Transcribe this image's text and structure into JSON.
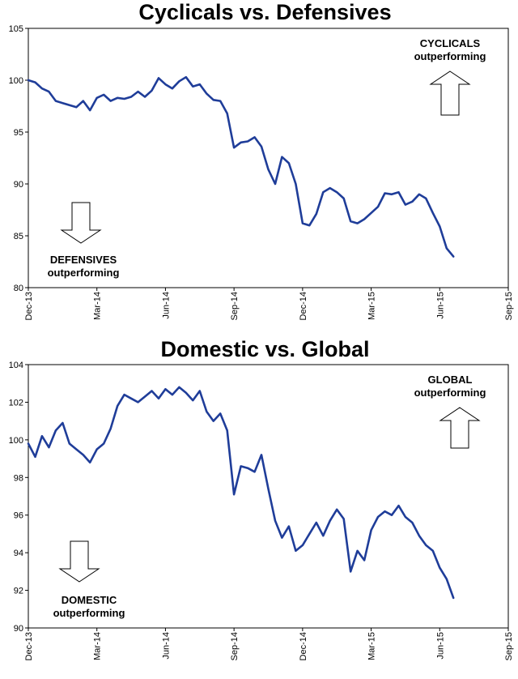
{
  "chart_data": [
    {
      "type": "line",
      "title": "Cyclicals vs. Defensives",
      "ylim": [
        80,
        105
      ],
      "yticks": [
        80,
        85,
        90,
        95,
        100,
        105
      ],
      "xtick_labels": [
        "Dec-13",
        "Mar-14",
        "Jun-14",
        "Sep-14",
        "Dec-14",
        "Mar-15",
        "Jun-15",
        "Sep-15"
      ],
      "xlim": [
        0,
        21
      ],
      "line_color": "#1f3d99",
      "grid": false,
      "annotations": {
        "up": "CYCLICALS\noutperforming",
        "down": "DEFENSIVES\noutperforming"
      },
      "series": [
        {
          "x": [
            0,
            0.3,
            0.6,
            0.9,
            1.2,
            1.5,
            1.8,
            2.1,
            2.4,
            2.7,
            3.0,
            3.3,
            3.6,
            3.9,
            4.2,
            4.5,
            4.8,
            5.1,
            5.4,
            5.7,
            6.0,
            6.3,
            6.6,
            6.9,
            7.2,
            7.5,
            7.8,
            8.1,
            8.4,
            8.7,
            9.0,
            9.3,
            9.6,
            9.9,
            10.2,
            10.5,
            10.8,
            11.1,
            11.4,
            11.7,
            12.0,
            12.3,
            12.6,
            12.9,
            13.2,
            13.5,
            13.8,
            14.1,
            14.4,
            14.7,
            15.0,
            15.3,
            15.6,
            15.9,
            16.2,
            16.5,
            16.8,
            17.1,
            17.4,
            17.7,
            18.0,
            18.3,
            18.6
          ],
          "values": [
            100.0,
            99.8,
            99.2,
            98.9,
            98.0,
            97.8,
            97.6,
            97.4,
            98.0,
            97.1,
            98.3,
            98.6,
            98.0,
            98.3,
            98.2,
            98.4,
            98.9,
            98.4,
            99.0,
            100.2,
            99.6,
            99.2,
            99.9,
            100.3,
            99.4,
            99.6,
            98.7,
            98.1,
            98.0,
            96.8,
            93.5,
            94.0,
            94.1,
            94.5,
            93.6,
            91.4,
            90.0,
            92.6,
            92.0,
            90.0,
            86.2,
            86.0,
            87.1,
            89.2,
            89.6,
            89.2,
            88.6,
            86.4,
            86.2,
            86.6,
            87.2,
            87.8,
            89.1,
            89.0,
            89.2,
            88.0,
            88.3,
            89.0,
            88.6,
            87.2,
            85.9,
            83.8,
            83.0
          ]
        }
      ]
    },
    {
      "type": "line",
      "title": "Domestic vs. Global",
      "ylim": [
        90,
        104
      ],
      "yticks": [
        90,
        92,
        94,
        96,
        98,
        100,
        102,
        104
      ],
      "xtick_labels": [
        "Dec-13",
        "Mar-14",
        "Jun-14",
        "Sep-14",
        "Dec-14",
        "Mar-15",
        "Jun-15",
        "Sep-15"
      ],
      "xlim": [
        0,
        21
      ],
      "line_color": "#1f3d99",
      "grid": false,
      "annotations": {
        "up": "GLOBAL\noutperforming",
        "down": "DOMESTIC\noutperforming"
      },
      "series": [
        {
          "x": [
            0,
            0.3,
            0.6,
            0.9,
            1.2,
            1.5,
            1.8,
            2.1,
            2.4,
            2.7,
            3.0,
            3.3,
            3.6,
            3.9,
            4.2,
            4.5,
            4.8,
            5.1,
            5.4,
            5.7,
            6.0,
            6.3,
            6.6,
            6.9,
            7.2,
            7.5,
            7.8,
            8.1,
            8.4,
            8.7,
            9.0,
            9.3,
            9.6,
            9.9,
            10.2,
            10.5,
            10.8,
            11.1,
            11.4,
            11.7,
            12.0,
            12.3,
            12.6,
            12.9,
            13.2,
            13.5,
            13.8,
            14.1,
            14.4,
            14.7,
            15.0,
            15.3,
            15.6,
            15.9,
            16.2,
            16.5,
            16.8,
            17.1,
            17.4,
            17.7,
            18.0,
            18.3,
            18.6
          ],
          "values": [
            99.8,
            99.1,
            100.2,
            99.6,
            100.5,
            100.9,
            99.8,
            99.5,
            99.2,
            98.8,
            99.5,
            99.8,
            100.6,
            101.8,
            102.4,
            102.2,
            102.0,
            102.3,
            102.6,
            102.2,
            102.7,
            102.4,
            102.8,
            102.5,
            102.1,
            102.6,
            101.5,
            101.0,
            101.4,
            100.5,
            97.1,
            98.6,
            98.5,
            98.3,
            99.2,
            97.4,
            95.7,
            94.8,
            95.4,
            94.1,
            94.4,
            95.0,
            95.6,
            94.9,
            95.7,
            96.3,
            95.8,
            93.0,
            94.1,
            93.6,
            95.2,
            95.9,
            96.2,
            96.0,
            96.5,
            95.9,
            95.6,
            94.9,
            94.4,
            94.1,
            93.2,
            92.6,
            91.6
          ]
        }
      ]
    }
  ]
}
